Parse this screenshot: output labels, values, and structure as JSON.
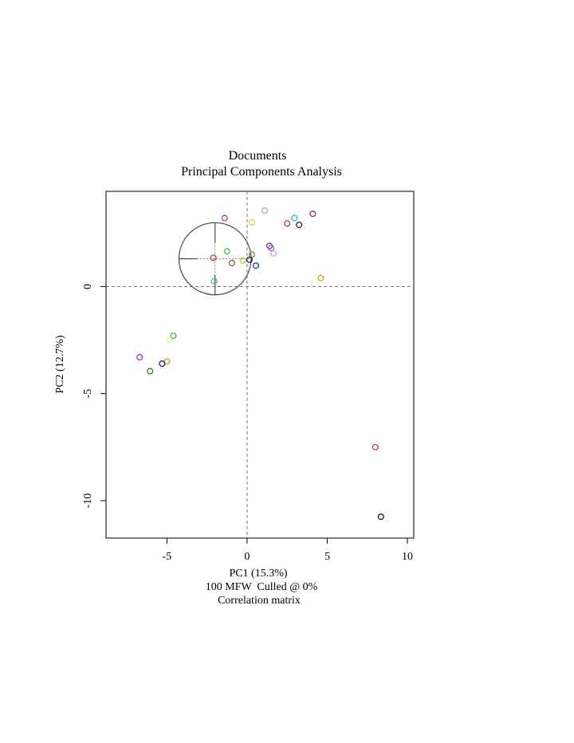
{
  "chart_data": {
    "type": "scatter",
    "title": "Documents",
    "subtitle": "Principal Components Analysis",
    "xlabel": "PC1 (15.3%)",
    "ylabel": "PC2 (12.7%)",
    "notes": [
      "100 MFW  Culled @ 0%",
      "Correlation matrix"
    ],
    "xlim": [
      -8.8,
      10.4
    ],
    "ylim": [
      -11.75,
      4.45
    ],
    "x_ticks": [
      -5,
      0,
      5,
      10
    ],
    "x_tick_labels": [
      "-5",
      "0",
      "5",
      "10"
    ],
    "y_ticks": [
      0,
      -5,
      -10
    ],
    "y_tick_labels": [
      "0",
      "-5",
      "-10"
    ],
    "grid": false,
    "reference_lines": {
      "x": 0,
      "y": 0
    },
    "points": [
      {
        "x": -1.4,
        "y": 3.2,
        "color": "#b03a8c"
      },
      {
        "x": 1.1,
        "y": 3.55,
        "color": "#b0b0b0"
      },
      {
        "x": 0.3,
        "y": 3.0,
        "color": "#d6d04a"
      },
      {
        "x": 2.95,
        "y": 3.2,
        "color": "#2ab3c8"
      },
      {
        "x": 4.1,
        "y": 3.4,
        "color": "#8b2a6e"
      },
      {
        "x": 2.5,
        "y": 2.95,
        "color": "#b03a3a"
      },
      {
        "x": 3.25,
        "y": 2.88,
        "color": "#3a1a3a"
      },
      {
        "x": 1.4,
        "y": 1.9,
        "color": "#8b3a3a"
      },
      {
        "x": 1.5,
        "y": 1.8,
        "color": "#9a6ab8"
      },
      {
        "x": 1.65,
        "y": 1.55,
        "color": "#c9a0dc"
      },
      {
        "x": -1.25,
        "y": 1.65,
        "color": "#3ac83a"
      },
      {
        "x": 0.3,
        "y": 1.5,
        "color": "#8a8a3a"
      },
      {
        "x": -2.1,
        "y": 1.35,
        "color": "#c83a3a"
      },
      {
        "x": 0.15,
        "y": 1.25,
        "color": "#1a1a5a"
      },
      {
        "x": -0.25,
        "y": 1.22,
        "color": "#b8c83a"
      },
      {
        "x": -0.95,
        "y": 1.1,
        "color": "#8b5a3a"
      },
      {
        "x": 0.55,
        "y": 0.98,
        "color": "#1a3ab0"
      },
      {
        "x": -2.05,
        "y": 0.25,
        "color": "#3ab8a8"
      },
      {
        "x": 4.6,
        "y": 0.4,
        "color": "#c8a81a"
      },
      {
        "x": -4.6,
        "y": -2.3,
        "color": "#3ab83a"
      },
      {
        "x": -4.85,
        "y": -2.5,
        "color": "#e8e89a"
      },
      {
        "x": -6.7,
        "y": -3.3,
        "color": "#9a3ab8"
      },
      {
        "x": -5.0,
        "y": -3.5,
        "color": "#c8a03a"
      },
      {
        "x": -5.3,
        "y": -3.6,
        "color": "#1a1a8b"
      },
      {
        "x": -6.05,
        "y": -3.95,
        "color": "#2a7a1a"
      },
      {
        "x": 8.0,
        "y": -7.5,
        "color": "#b83a3a"
      },
      {
        "x": 8.35,
        "y": -10.75,
        "color": "#1a1a1a"
      }
    ],
    "loadings_circle": {
      "cx": -2.0,
      "cy": 1.3,
      "r": 2.25
    }
  }
}
